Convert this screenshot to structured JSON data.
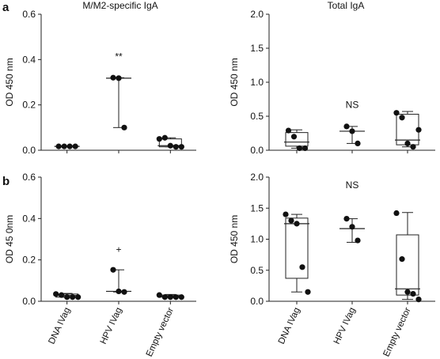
{
  "panel_labels": {
    "a": "a",
    "b": "b"
  },
  "chart_data": [
    {
      "id": "a-left",
      "type": "box",
      "title": "M/M2-specific IgA",
      "ylabel": "OD 450 nm",
      "ylim": [
        0,
        0.6
      ],
      "yticks": [
        0,
        0.2,
        0.4,
        0.6
      ],
      "ytick_labels": [
        "0.0",
        "0.2",
        "0.4",
        "0.6"
      ],
      "categories": [
        "DNA IVag",
        "HPV IVag",
        "Empty vector"
      ],
      "show_category_labels": false,
      "groups": [
        {
          "points": [
            0.017,
            0.017,
            0.017,
            0.017
          ],
          "min": 0.015,
          "q1": 0.015,
          "median": 0.017,
          "q3": 0.019,
          "max": 0.02,
          "box": false
        },
        {
          "points": [
            0.32,
            0.318,
            0.1
          ],
          "min": 0.1,
          "q1": 0.1,
          "median": 0.318,
          "q3": 0.32,
          "max": 0.32,
          "box": false
        },
        {
          "points": [
            0.05,
            0.055,
            0.02,
            0.015,
            0.015
          ],
          "min": 0.015,
          "q1": 0.015,
          "median": 0.02,
          "q3": 0.05,
          "max": 0.055,
          "box": true
        }
      ],
      "annotations": [
        {
          "text": "**",
          "category": 1,
          "y": 0.4
        }
      ]
    },
    {
      "id": "a-right",
      "type": "box",
      "title": "Total IgA",
      "ylabel": "OD 450 nm",
      "ylim": [
        0,
        2.0
      ],
      "yticks": [
        0,
        0.5,
        1.0,
        1.5,
        2.0
      ],
      "ytick_labels": [
        "0.0",
        "0.5",
        "1.0",
        "1.5",
        "2.0"
      ],
      "categories": [
        "DNA IVag",
        "HPV IVag",
        "Empty vector"
      ],
      "show_category_labels": false,
      "groups": [
        {
          "points": [
            0.29,
            0.2,
            0.03,
            0.03
          ],
          "min": 0.03,
          "q1": 0.06,
          "median": 0.12,
          "q3": 0.26,
          "max": 0.3,
          "box": true
        },
        {
          "points": [
            0.35,
            0.28,
            0.1
          ],
          "min": 0.1,
          "q1": 0.1,
          "median": 0.28,
          "q3": 0.35,
          "max": 0.35,
          "box": false
        },
        {
          "points": [
            0.55,
            0.48,
            0.1,
            0.05,
            0.3
          ],
          "min": 0.05,
          "q1": 0.08,
          "median": 0.15,
          "q3": 0.53,
          "max": 0.57,
          "box": true
        }
      ],
      "annotations": [
        {
          "text": "NS",
          "category": 1,
          "y": 0.62
        }
      ]
    },
    {
      "id": "b-left",
      "type": "box",
      "title": "",
      "ylabel": "OD 45 0nm",
      "ylim": [
        0,
        0.6
      ],
      "yticks": [
        0,
        0.2,
        0.4,
        0.6
      ],
      "ytick_labels": [
        "0.0",
        "0.2",
        "0.4",
        "0.6"
      ],
      "categories": [
        "DNA IVag",
        "HPV IVag",
        "Empty vector"
      ],
      "show_category_labels": true,
      "groups": [
        {
          "points": [
            0.035,
            0.03,
            0.02,
            0.02,
            0.02
          ],
          "min": 0.02,
          "q1": 0.02,
          "median": 0.028,
          "q3": 0.035,
          "max": 0.038,
          "box": true
        },
        {
          "points": [
            0.152,
            0.048,
            0.045
          ],
          "min": 0.045,
          "q1": 0.045,
          "median": 0.048,
          "q3": 0.152,
          "max": 0.152,
          "box": false
        },
        {
          "points": [
            0.03,
            0.02,
            0.02,
            0.02,
            0.02
          ],
          "min": 0.018,
          "q1": 0.02,
          "median": 0.025,
          "q3": 0.03,
          "max": 0.033,
          "box": true
        }
      ],
      "annotations": [
        {
          "text": "+",
          "category": 1,
          "y": 0.235
        }
      ]
    },
    {
      "id": "b-right",
      "type": "box",
      "title": "",
      "ylabel": "OD 450 nm",
      "ylim": [
        0,
        2.0
      ],
      "yticks": [
        0,
        0.5,
        1.0,
        1.5,
        2.0
      ],
      "ytick_labels": [
        "0.0",
        "0.5",
        "1.0",
        "1.5",
        "2.0"
      ],
      "categories": [
        "DNA IVag",
        "HPV IVag",
        "Empty vector"
      ],
      "show_category_labels": true,
      "groups": [
        {
          "points": [
            1.4,
            1.3,
            1.25,
            0.55,
            0.15
          ],
          "min": 0.15,
          "q1": 0.37,
          "median": 1.25,
          "q3": 1.34,
          "max": 1.4,
          "box": true
        },
        {
          "points": [
            1.33,
            1.2,
            0.98
          ],
          "min": 0.95,
          "q1": 0.95,
          "median": 1.17,
          "q3": 1.33,
          "max": 1.33,
          "box": false
        },
        {
          "points": [
            1.42,
            0.68,
            0.15,
            0.12,
            0.03
          ],
          "min": 0.03,
          "q1": 0.1,
          "median": 0.2,
          "q3": 1.07,
          "max": 1.43,
          "box": true
        }
      ],
      "annotations": [
        {
          "text": "NS",
          "category": 1,
          "y": 1.82
        }
      ]
    }
  ]
}
